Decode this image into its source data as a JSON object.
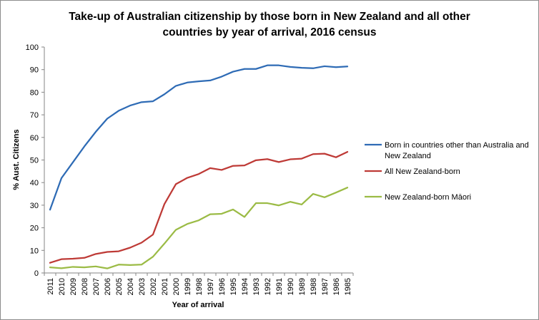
{
  "chart_data": {
    "type": "line",
    "title_lines": [
      "Take-up of Australian citizenship by those born in New Zealand and all other",
      "countries by year of arrival,  2016 census"
    ],
    "xlabel": "Year of arrival",
    "ylabel": "% Aust. Citizens",
    "ylim": [
      0,
      100
    ],
    "yticks": [
      0,
      10,
      20,
      30,
      40,
      50,
      60,
      70,
      80,
      90,
      100
    ],
    "grid": false,
    "legend_position": "right",
    "x": [
      "2011",
      "2010",
      "2009",
      "2008",
      "2007",
      "2006",
      "2005",
      "2004",
      "2003",
      "2002",
      "2001",
      "2000",
      "1999",
      "1998",
      "1997",
      "1996",
      "1995",
      "1994",
      "1993",
      "1992",
      "1991",
      "1990",
      "1989",
      "1988",
      "1987",
      "1986",
      "1985"
    ],
    "series": [
      {
        "name": "Born in countries other than Australia and New Zealand",
        "legend_lines": [
          "Born in countries other than Australia and",
          "New Zealand"
        ],
        "color": "#2E6BB5",
        "values": [
          28.0,
          42.0,
          49.0,
          56.0,
          62.5,
          68.3,
          71.8,
          74.1,
          75.6,
          76.0,
          79.1,
          82.8,
          84.3,
          84.8,
          85.2,
          86.9,
          89.1,
          90.3,
          90.3,
          91.9,
          91.9,
          91.2,
          90.8,
          90.6,
          91.5,
          91.1,
          91.4
        ]
      },
      {
        "name": "All New Zealand-born",
        "legend_lines": [
          "All New Zealand-born"
        ],
        "color": "#BE3A36",
        "values": [
          4.5,
          6.1,
          6.3,
          6.7,
          8.4,
          9.3,
          9.6,
          11.2,
          13.4,
          17.0,
          30.5,
          39.3,
          42.1,
          43.8,
          46.4,
          45.6,
          47.4,
          47.6,
          49.9,
          50.4,
          49.1,
          50.3,
          50.6,
          52.6,
          52.8,
          51.2,
          53.6
        ]
      },
      {
        "name": "New Zealand-born Māori",
        "legend_lines": [
          "New Zealand-born Māori"
        ],
        "color": "#9BBB45",
        "values": [
          2.5,
          2.1,
          2.7,
          2.5,
          2.9,
          2.0,
          3.7,
          3.5,
          3.7,
          7.2,
          13.0,
          19.1,
          21.7,
          23.3,
          26.0,
          26.2,
          28.1,
          24.8,
          30.9,
          30.9,
          29.9,
          31.5,
          30.3,
          35.0,
          33.5,
          35.6,
          37.8
        ]
      }
    ]
  }
}
